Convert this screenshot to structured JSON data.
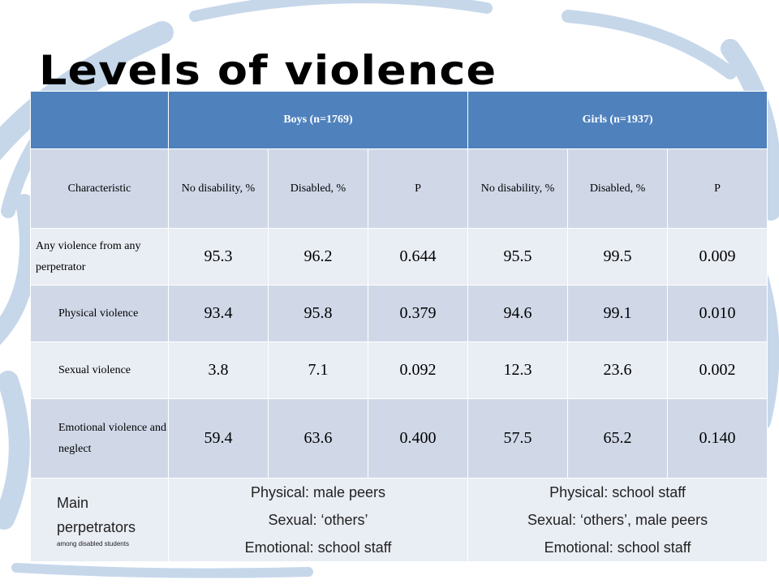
{
  "slide": {
    "title": "Levels of violence"
  },
  "table": {
    "group_headers": [
      "Boys (n=1769)",
      "Girls (n=1937)"
    ],
    "sub_headers": [
      "Characteristic",
      "No disability, %",
      "Disabled, %",
      "P",
      "No disability, %",
      "Disabled, %",
      "P"
    ],
    "rows": [
      {
        "label": "Any violence from any perpetrator",
        "values": [
          "95.3",
          "96.2",
          "0.644",
          "95.5",
          "99.5",
          "0.009"
        ]
      },
      {
        "label": "Physical violence",
        "values": [
          "93.4",
          "95.8",
          "0.379",
          "94.6",
          "99.1",
          "0.010"
        ]
      },
      {
        "label": "Sexual violence",
        "values": [
          "3.8",
          "7.1",
          "0.092",
          "12.3",
          "23.6",
          "0.002"
        ]
      },
      {
        "label": "Emotional violence and neglect",
        "values": [
          "59.4",
          "63.6",
          "0.400",
          "57.5",
          "65.2",
          "0.140"
        ]
      }
    ],
    "perpetrators": {
      "label": "Main perpetrators",
      "sublabel": "among disabled students",
      "boys": [
        "Physical: male peers",
        "Sexual: ‘others’",
        "Emotional:  school staff"
      ],
      "girls": [
        "Physical: school staff",
        "Sexual: ‘others’, male peers",
        "Emotional:  school staff"
      ]
    }
  }
}
